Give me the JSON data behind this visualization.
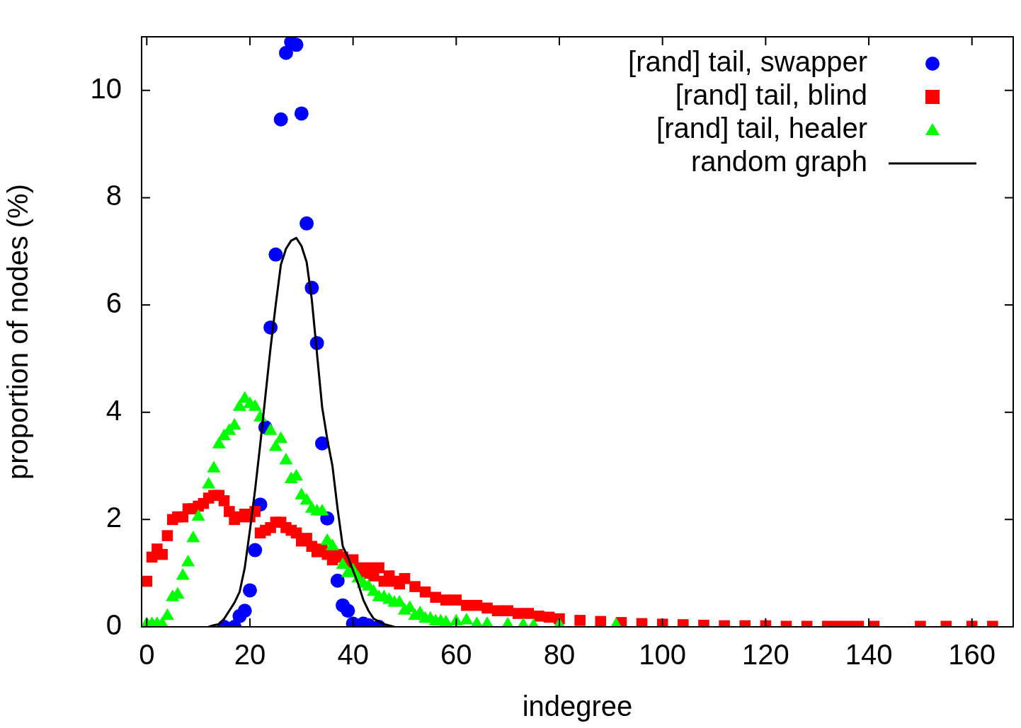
{
  "chart_data": {
    "type": "scatter",
    "xlabel": "indegree",
    "ylabel": "proportion of nodes (%)",
    "xlim": [
      -1,
      168
    ],
    "ylim": [
      0,
      11
    ],
    "xticks": [
      0,
      20,
      40,
      60,
      80,
      100,
      120,
      140,
      160
    ],
    "yticks": [
      0,
      2,
      4,
      6,
      8,
      10
    ],
    "grid": false,
    "legend": "top right",
    "series": [
      {
        "name": "[rand] tail, swapper",
        "color": "#0000ff",
        "marker": "circle",
        "x": [
          15,
          17,
          18,
          19,
          20,
          21,
          22,
          23,
          24,
          25,
          26,
          27,
          28,
          29,
          30,
          31,
          32,
          33,
          34,
          35,
          37,
          38,
          39,
          40,
          42,
          43,
          45
        ],
        "values": [
          0,
          0,
          0.2,
          0.3,
          0.68,
          1.43,
          2.28,
          3.72,
          5.58,
          6.94,
          9.46,
          10.7,
          10.9,
          10.85,
          9.57,
          7.52,
          6.32,
          5.29,
          3.42,
          2.02,
          0.86,
          0.4,
          0.3,
          0.06,
          0.06,
          0.03,
          0
        ]
      },
      {
        "name": "[rand] tail, blind",
        "color": "#ff0000",
        "marker": "square",
        "x": [
          0,
          1,
          2,
          3,
          4,
          5,
          6,
          7,
          8,
          9,
          10,
          11,
          12,
          13,
          14,
          15,
          16,
          17,
          18,
          19,
          20,
          21,
          22,
          23,
          24,
          25,
          26,
          27,
          28,
          29,
          30,
          31,
          32,
          33,
          34,
          35,
          36,
          37,
          38,
          39,
          40,
          41,
          42,
          43,
          44,
          45,
          46,
          47,
          48,
          49,
          50,
          52,
          54,
          56,
          58,
          60,
          62,
          64,
          66,
          68,
          70,
          72,
          74,
          76,
          78,
          80,
          84,
          88,
          92,
          96,
          100,
          104,
          108,
          112,
          116,
          120,
          124,
          128,
          132,
          134,
          136,
          138,
          141,
          150,
          155,
          160,
          164
        ],
        "values": [
          0.85,
          1.3,
          1.45,
          1.35,
          1.7,
          2.0,
          2.05,
          2.05,
          2.2,
          2.2,
          2.25,
          2.3,
          2.4,
          2.45,
          2.45,
          2.35,
          2.15,
          2.0,
          2.05,
          2.1,
          2.05,
          2.15,
          1.75,
          1.8,
          1.85,
          1.95,
          1.95,
          1.85,
          1.8,
          1.75,
          1.6,
          1.65,
          1.5,
          1.4,
          1.45,
          1.35,
          1.25,
          1.35,
          1.3,
          1.2,
          1.25,
          1.1,
          1.0,
          1.1,
          0.95,
          1.1,
          0.85,
          0.95,
          0.85,
          0.8,
          0.9,
          0.75,
          0.65,
          0.55,
          0.5,
          0.5,
          0.4,
          0.4,
          0.35,
          0.3,
          0.3,
          0.25,
          0.25,
          0.2,
          0.18,
          0.15,
          0.12,
          0.1,
          0.08,
          0.06,
          0.05,
          0.04,
          0.03,
          0.02,
          0.02,
          0.02,
          0.01,
          0.01,
          0.01,
          0.01,
          0.01,
          0.01,
          0.01,
          0.01,
          0.01,
          0.01,
          0.01
        ]
      },
      {
        "name": "[rand] tail, healer",
        "color": "#00ff00",
        "marker": "triangle",
        "x": [
          0,
          1,
          2,
          3,
          4,
          5,
          6,
          7,
          8,
          9,
          10,
          12,
          13,
          14,
          15,
          16,
          17,
          18,
          19,
          20,
          21,
          22,
          24,
          25,
          26,
          27,
          28,
          29,
          30,
          31,
          32,
          33,
          34,
          35,
          36,
          38,
          39,
          40,
          41,
          42,
          43,
          44,
          45,
          46,
          47,
          48,
          49,
          50,
          51,
          52,
          53,
          54,
          55,
          56,
          57,
          58,
          60,
          62,
          64,
          66,
          70,
          73,
          75,
          80,
          91
        ],
        "values": [
          0.05,
          0.05,
          0.05,
          0.05,
          0.2,
          0.55,
          0.6,
          0.95,
          1.2,
          1.65,
          2.05,
          2.65,
          2.95,
          3.4,
          3.55,
          3.65,
          3.75,
          4.1,
          4.25,
          4.15,
          4.1,
          3.9,
          3.65,
          3.35,
          3.5,
          3.1,
          2.75,
          2.8,
          2.45,
          2.35,
          2.2,
          2.15,
          2.15,
          1.6,
          1.5,
          1.15,
          1.0,
          1.05,
          0.9,
          0.8,
          0.75,
          0.65,
          0.55,
          0.55,
          0.5,
          0.45,
          0.45,
          0.3,
          0.35,
          0.2,
          0.25,
          0.15,
          0.15,
          0.1,
          0.1,
          0.08,
          0.1,
          0.12,
          0.05,
          0.05,
          0.04,
          0.03,
          0.02,
          0.03,
          0.03
        ]
      },
      {
        "name": "random graph",
        "type": "line",
        "color": "#000000",
        "marker": "none",
        "line_style": "solid",
        "x": [
          12,
          13,
          14,
          15,
          16,
          17,
          18,
          19,
          20,
          21,
          22,
          23,
          24,
          25,
          26,
          27,
          28,
          29,
          30,
          31,
          32,
          33,
          34,
          35,
          36,
          37,
          38,
          39,
          41,
          42,
          43,
          44,
          45,
          46,
          48
        ],
        "values": [
          0,
          0.03,
          0.05,
          0.15,
          0.3,
          0.45,
          0.65,
          1.1,
          1.8,
          2.55,
          3.4,
          4.3,
          5.2,
          6.0,
          6.75,
          7.05,
          7.2,
          7.25,
          7.1,
          6.8,
          6.1,
          5.1,
          4.1,
          3.5,
          3.0,
          2.2,
          1.5,
          1.3,
          0.8,
          0.5,
          0.3,
          0.15,
          0.1,
          0.05,
          0
        ]
      }
    ]
  }
}
